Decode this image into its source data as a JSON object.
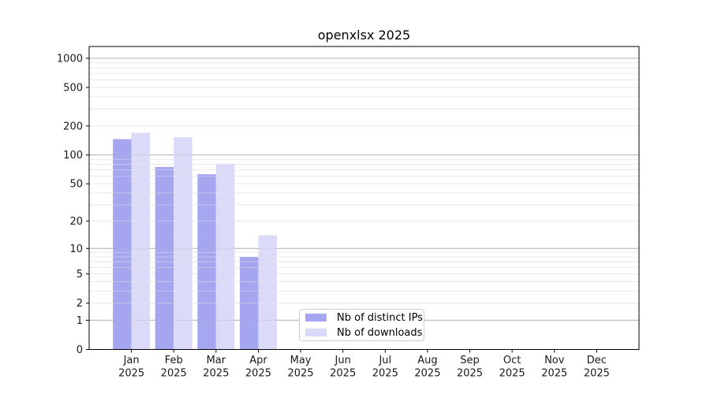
{
  "figure": {
    "background": "#ffffff"
  },
  "chart_data": {
    "type": "bar",
    "title": "openxlsx 2025",
    "categories": [
      "Jan 2025",
      "Feb 2025",
      "Mar 2025",
      "Apr 2025",
      "May 2025",
      "Jun 2025",
      "Jul 2025",
      "Aug 2025",
      "Sep 2025",
      "Oct 2025",
      "Nov 2025",
      "Dec 2025"
    ],
    "series": [
      {
        "name": "Nb of distinct IPs",
        "color": "#a5a5f0",
        "values": [
          146,
          75,
          63,
          8,
          null,
          null,
          null,
          null,
          null,
          null,
          null,
          null
        ]
      },
      {
        "name": "Nb of downloads",
        "color": "#dbdbf9",
        "values": [
          170,
          153,
          81,
          14,
          null,
          null,
          null,
          null,
          null,
          null,
          null,
          null
        ]
      }
    ],
    "xlabel": "",
    "ylabel": "",
    "y_scale": "log1p",
    "y_ticks": [
      0,
      1,
      2,
      5,
      10,
      20,
      50,
      100,
      200,
      500,
      1000
    ],
    "ylim": [
      0,
      1300
    ],
    "grid": "on",
    "grid_major": [
      1,
      10,
      100,
      1000
    ],
    "grid_minor": [
      2,
      3,
      4,
      6,
      7,
      8,
      9,
      20,
      30,
      40,
      60,
      70,
      80,
      90,
      200,
      300,
      400,
      600,
      700,
      800,
      900
    ],
    "minor_labeled_ticks": [
      2,
      5,
      20,
      50,
      200,
      500
    ],
    "legend_position": "inside lower center",
    "colors": {
      "axis": "#000000",
      "grid_major": "#b5b5b5",
      "grid_minor": "#eaeaea",
      "tick_label": "#1a1a1a",
      "legend_border": "#cccccc"
    }
  }
}
